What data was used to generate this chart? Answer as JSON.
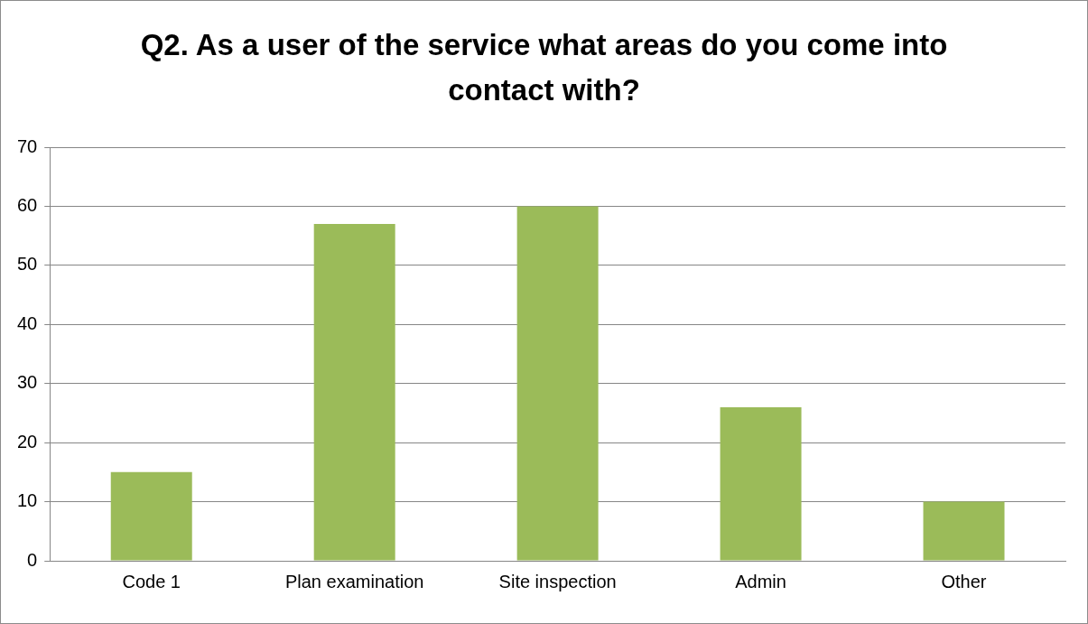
{
  "chart_data": {
    "type": "bar",
    "title": "Q2. As a user of the service what areas do you come into contact with?",
    "categories": [
      "Code 1",
      "Plan examination",
      "Site inspection",
      "Admin",
      "Other"
    ],
    "values": [
      15,
      57,
      60,
      26,
      10
    ],
    "color": "#9bbb59",
    "ylim": [
      0,
      70
    ],
    "yticks": [
      0,
      10,
      20,
      30,
      40,
      50,
      60,
      70
    ],
    "grid": "y",
    "legend": false
  }
}
